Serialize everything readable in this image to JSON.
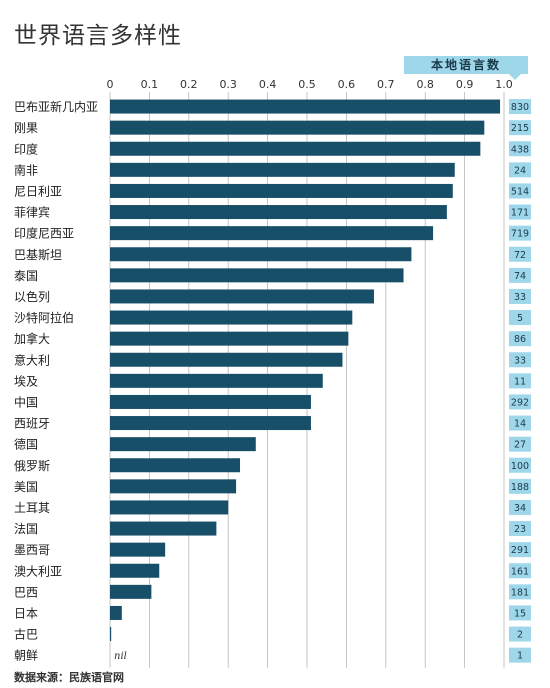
{
  "title": "世界语言多样性",
  "header_label": "本地语言数",
  "source": "数据来源：民族语官网",
  "chart_data": {
    "type": "bar",
    "orientation": "horizontal",
    "title": "世界语言多样性",
    "xlim": [
      0,
      1.0
    ],
    "x_ticks": [
      "0",
      "0.1",
      "0.2",
      "0.3",
      "0.4",
      "0.5",
      "0.6",
      "0.7",
      "0.8",
      "0.9",
      "1.0"
    ],
    "grid": true,
    "categories": [
      "巴布亚新几内亚",
      "刚果",
      "印度",
      "南非",
      "尼日利亚",
      "菲律宾",
      "印度尼西亚",
      "巴基斯坦",
      "泰国",
      "以色列",
      "沙特阿拉伯",
      "加拿大",
      "意大利",
      "埃及",
      "中国",
      "西班牙",
      "德国",
      "俄罗斯",
      "美国",
      "土耳其",
      "法国",
      "墨西哥",
      "澳大利亚",
      "巴西",
      "日本",
      "古巴",
      "朝鲜"
    ],
    "values": [
      0.99,
      0.95,
      0.94,
      0.875,
      0.87,
      0.855,
      0.82,
      0.765,
      0.745,
      0.67,
      0.615,
      0.605,
      0.59,
      0.54,
      0.51,
      0.51,
      0.37,
      0.33,
      0.32,
      0.3,
      0.27,
      0.14,
      0.125,
      0.105,
      0.03,
      0.003,
      null
    ],
    "value_labels": [
      "",
      "",
      "",
      "",
      "",
      "",
      "",
      "",
      "",
      "",
      "",
      "",
      "",
      "",
      "",
      "",
      "",
      "",
      "",
      "",
      "",
      "",
      "",
      "",
      "",
      "",
      "nil"
    ],
    "language_counts": [
      "830",
      "215",
      "438",
      "24",
      "514",
      "171",
      "719",
      "72",
      "74",
      "33",
      "5",
      "86",
      "33",
      "11",
      "292",
      "14",
      "27",
      "100",
      "188",
      "34",
      "23",
      "291",
      "161",
      "181",
      "15",
      "2",
      "1"
    ],
    "colors": {
      "bar": "#174e68",
      "count_box": "#9ed6ea",
      "count_text": "#1b3a4a",
      "grid": "#b8b8b8"
    }
  }
}
